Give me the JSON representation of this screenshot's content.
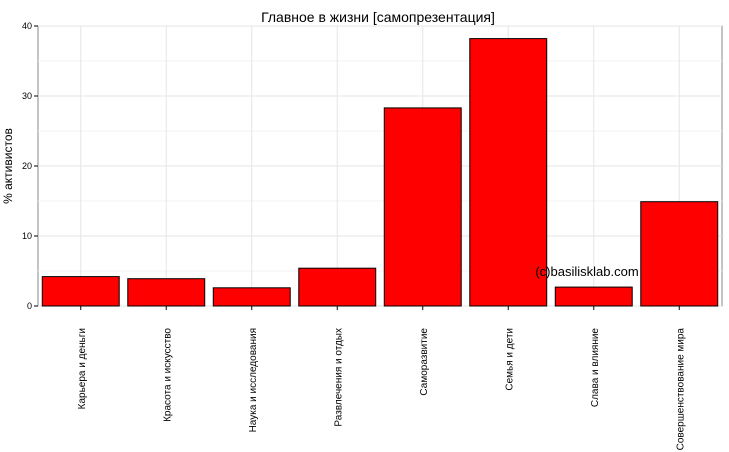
{
  "chart_data": {
    "type": "bar",
    "title": "Главное в жизни [самопрезентация]",
    "xlabel": "",
    "ylabel": "% активистов",
    "ylim": [
      0,
      40
    ],
    "yticks": [
      0,
      10,
      20,
      30,
      40
    ],
    "grid": true,
    "categories": [
      "Карьера и деньги",
      "Красота и искусство",
      "Наука и исследования",
      "Развлечения и отдых",
      "Саморазвитие",
      "Семья и дети",
      "Слава и влияние",
      "Совершенствование мира"
    ],
    "values": [
      4.2,
      3.9,
      2.6,
      5.4,
      28.3,
      38.2,
      2.7,
      14.9
    ],
    "bar_color": "#ff0000",
    "annotation": "(c)basilisklab.com"
  }
}
